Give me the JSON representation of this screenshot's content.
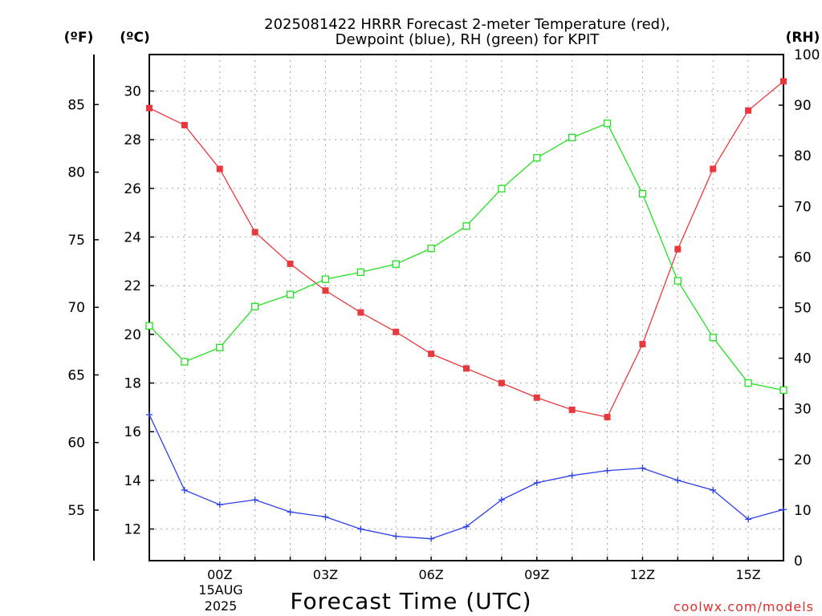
{
  "title_lines": [
    "2025081422 HRRR Forecast 2-meter Temperature (red),",
    "Dewpoint (blue), RH (green) for KPIT"
  ],
  "unit_labels": {
    "fahrenheit": "(ºF)",
    "celsius": "(ºC)",
    "rh": "(RH)"
  },
  "watermark": "coolwx.com/models",
  "chart_data": {
    "type": "line",
    "title": "2025081422 HRRR Forecast 2-meter Temperature (red), Dewpoint (blue), RH (green) for KPIT",
    "xlabel": "Forecast Time (UTC)",
    "x": [
      -2,
      -1,
      0,
      1,
      2,
      3,
      4,
      5,
      6,
      7,
      8,
      9,
      10,
      11,
      12,
      13,
      14,
      15,
      16
    ],
    "xlim": [
      -2,
      16
    ],
    "x_ticks": [
      {
        "x": 0,
        "label": "00Z"
      },
      {
        "x": 3,
        "label": "03Z"
      },
      {
        "x": 6,
        "label": "06Z"
      },
      {
        "x": 9,
        "label": "09Z"
      },
      {
        "x": 12,
        "label": "12Z"
      },
      {
        "x": 15,
        "label": "15Z"
      }
    ],
    "x_date_label": [
      "15AUG",
      "2025"
    ],
    "grid": true,
    "y_left_celsius": {
      "label": "(ºC)",
      "ylim": [
        10.7,
        31.5
      ],
      "ticks": [
        12,
        14,
        16,
        18,
        20,
        22,
        24,
        26,
        28,
        30
      ]
    },
    "y_left_fahrenheit": {
      "label": "(ºF)",
      "ticks": [
        55,
        60,
        65,
        70,
        75,
        80,
        85
      ]
    },
    "y_right_rh": {
      "label": "(RH)",
      "ylim": [
        0,
        100
      ],
      "ticks": [
        0,
        10,
        20,
        30,
        40,
        50,
        60,
        70,
        80,
        90,
        100
      ]
    },
    "series": [
      {
        "name": "Temperature",
        "color": "#e8393e",
        "marker": "filled-square",
        "axis": "celsius",
        "values": [
          29.3,
          28.6,
          26.8,
          24.2,
          22.9,
          21.8,
          20.9,
          20.1,
          19.2,
          18.6,
          18.0,
          17.4,
          16.9,
          16.6,
          19.6,
          23.5,
          26.8,
          29.2,
          30.4
        ]
      },
      {
        "name": "Dewpoint",
        "color": "#2b3fe8",
        "marker": "plus",
        "axis": "celsius",
        "values": [
          16.7,
          13.6,
          13.0,
          13.2,
          12.7,
          12.5,
          12.0,
          11.7,
          11.6,
          12.1,
          13.2,
          13.9,
          14.2,
          14.4,
          14.5,
          14.0,
          13.6,
          12.4,
          12.8
        ]
      },
      {
        "name": "RH",
        "color": "#21e021",
        "marker": "open-square",
        "axis": "rh",
        "values": [
          46.4,
          39.3,
          42.1,
          50.2,
          52.6,
          55.6,
          57.0,
          58.6,
          61.7,
          66.1,
          73.5,
          79.6,
          83.6,
          86.4,
          72.5,
          55.3,
          44.1,
          35.1,
          33.7
        ]
      }
    ]
  }
}
